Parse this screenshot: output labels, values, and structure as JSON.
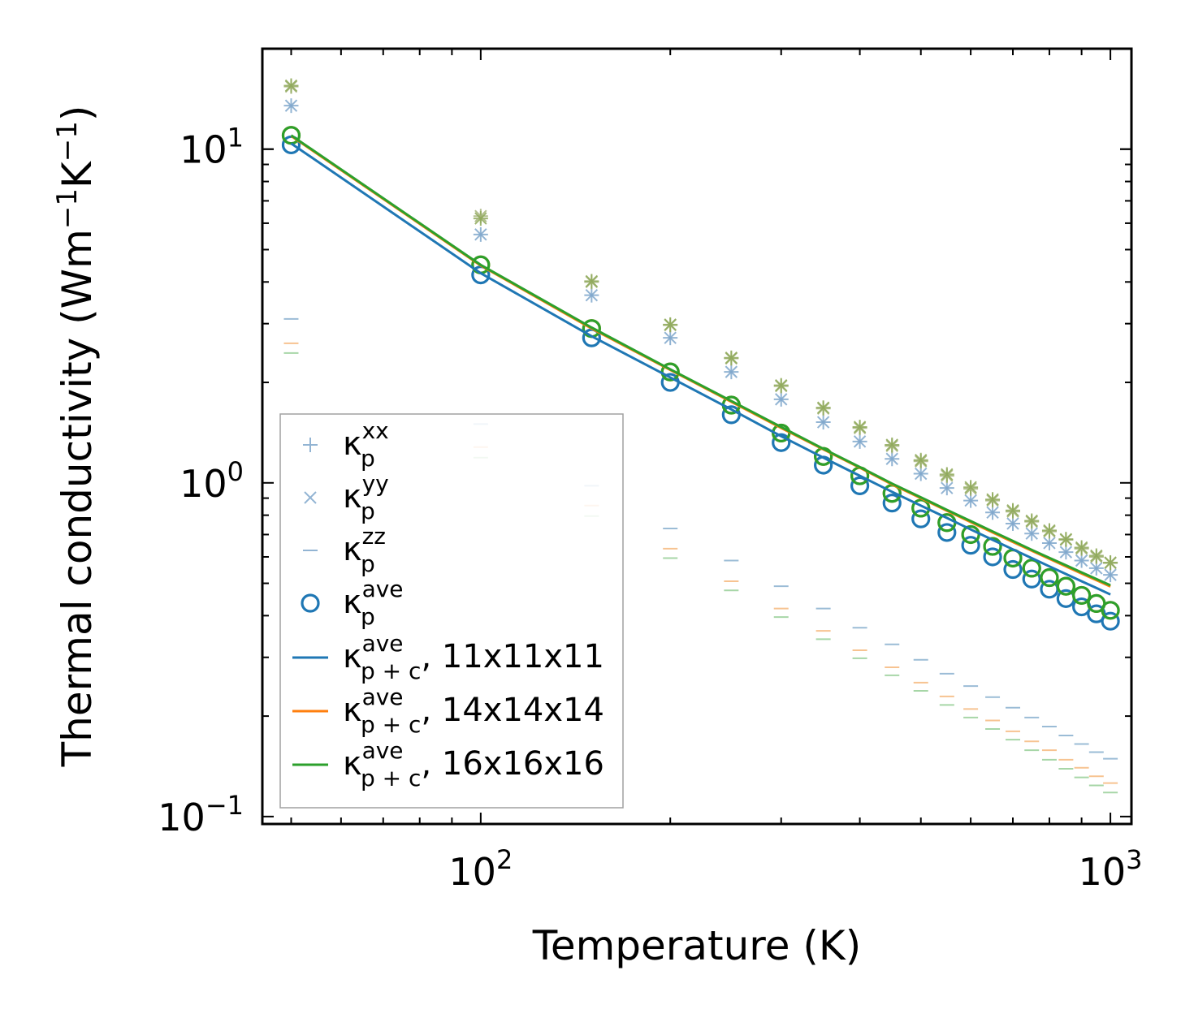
{
  "chart_data": {
    "type": "scatter",
    "xscale": "log",
    "yscale": "log",
    "xlim": [
      45,
      1080
    ],
    "ylim": [
      0.095,
      20
    ],
    "xlabel": "Temperature (K)",
    "ylabel": {
      "main": "Thermal conductivity (Wm",
      "exp1": "−1",
      "mid": "K",
      "exp2": "−1",
      "end": ")"
    },
    "x_ticks": [
      {
        "base": "10",
        "exp": "2",
        "value": 100
      },
      {
        "base": "10",
        "exp": "3",
        "value": 1000
      }
    ],
    "y_ticks": [
      {
        "base": "10",
        "exp": "−1",
        "value": 0.1
      },
      {
        "base": "10",
        "exp": "0",
        "value": 1
      },
      {
        "base": "10",
        "exp": "1",
        "value": 10
      }
    ],
    "x": [
      50,
      100,
      150,
      200,
      250,
      300,
      350,
      400,
      450,
      500,
      550,
      600,
      650,
      700,
      750,
      800,
      850,
      900,
      950,
      1000
    ],
    "series": [
      {
        "name": "kappa_p_xx",
        "marker": "plus",
        "color": "#7fa7cc",
        "groups": [
          {
            "color": "#7fa7cc",
            "values": [
              13.5,
              5.55,
              3.65,
              2.72,
              2.15,
              1.78,
              1.52,
              1.33,
              1.18,
              1.065,
              0.965,
              0.885,
              0.815,
              0.755,
              0.705,
              0.66,
              0.62,
              0.585,
              0.555,
              0.53
            ]
          },
          {
            "color": "#a6b47c",
            "values": [
              15.4,
              6.3,
              4.0,
              2.97,
              2.36,
              1.95,
              1.67,
              1.46,
              1.29,
              1.16,
              1.05,
              0.96,
              0.885,
              0.82,
              0.765,
              0.715,
              0.675,
              0.635,
              0.6,
              0.575
            ]
          },
          {
            "color": "#8faa5a",
            "values": [
              15.5,
              6.2,
              4.02,
              2.98,
              2.37,
              1.96,
              1.68,
              1.47,
              1.3,
              1.17,
              1.06,
              0.97,
              0.892,
              0.827,
              0.77,
              0.72,
              0.678,
              0.64,
              0.605,
              0.577
            ]
          }
        ]
      },
      {
        "name": "kappa_p_yy",
        "marker": "x",
        "color": "#7fa7cc",
        "groups": [
          {
            "color": "#7fa7cc",
            "values": [
              13.5,
              5.55,
              3.65,
              2.72,
              2.15,
              1.78,
              1.52,
              1.33,
              1.18,
              1.065,
              0.965,
              0.885,
              0.815,
              0.755,
              0.705,
              0.66,
              0.62,
              0.585,
              0.555,
              0.53
            ]
          },
          {
            "color": "#a6b47c",
            "values": [
              15.4,
              6.3,
              4.0,
              2.97,
              2.36,
              1.95,
              1.67,
              1.46,
              1.29,
              1.16,
              1.05,
              0.96,
              0.885,
              0.82,
              0.765,
              0.715,
              0.675,
              0.635,
              0.6,
              0.575
            ]
          },
          {
            "color": "#8faa5a",
            "values": [
              15.5,
              6.2,
              4.02,
              2.98,
              2.37,
              1.96,
              1.68,
              1.47,
              1.3,
              1.17,
              1.06,
              0.97,
              0.892,
              0.827,
              0.77,
              0.72,
              0.678,
              0.64,
              0.605,
              0.577
            ]
          }
        ]
      },
      {
        "name": "kappa_p_zz",
        "marker": "hline",
        "color": "#7fa7cc",
        "groups": [
          {
            "color": "#8ab1d0",
            "values": [
              3.1,
              1.5,
              0.98,
              0.73,
              0.585,
              0.49,
              0.42,
              0.368,
              0.328,
              0.295,
              0.268,
              0.246,
              0.228,
              0.212,
              0.198,
              0.186,
              0.175,
              0.165,
              0.156,
              0.149
            ]
          },
          {
            "color": "#f6b97e",
            "values": [
              2.62,
              1.28,
              0.855,
              0.635,
              0.507,
              0.42,
              0.36,
              0.315,
              0.28,
              0.252,
              0.229,
              0.21,
              0.194,
              0.18,
              0.168,
              0.158,
              0.148,
              0.14,
              0.132,
              0.126
            ]
          },
          {
            "color": "#98cf98",
            "values": [
              2.45,
              1.19,
              0.795,
              0.595,
              0.476,
              0.396,
              0.34,
              0.298,
              0.265,
              0.238,
              0.216,
              0.198,
              0.183,
              0.17,
              0.158,
              0.148,
              0.139,
              0.131,
              0.124,
              0.118
            ]
          }
        ]
      },
      {
        "name": "kappa_p_ave",
        "marker": "circle",
        "groups": [
          {
            "color": "#1f77b4",
            "values": [
              10.3,
              4.2,
              2.72,
              2.0,
              1.6,
              1.32,
              1.13,
              0.98,
              0.87,
              0.78,
              0.71,
              0.65,
              0.6,
              0.55,
              0.515,
              0.48,
              0.45,
              0.425,
              0.405,
              0.385
            ]
          },
          {
            "color": "#ff7f0e",
            "values": [
              11.0,
              4.5,
              2.9,
              2.15,
              1.71,
              1.41,
              1.2,
              1.05,
              0.93,
              0.84,
              0.76,
              0.7,
              0.645,
              0.595,
              0.555,
              0.52,
              0.49,
              0.46,
              0.435,
              0.415
            ]
          },
          {
            "color": "#2ca02c",
            "values": [
              11.0,
              4.5,
              2.9,
              2.15,
              1.71,
              1.41,
              1.2,
              1.05,
              0.93,
              0.84,
              0.76,
              0.7,
              0.645,
              0.595,
              0.555,
              0.52,
              0.49,
              0.46,
              0.435,
              0.415
            ]
          }
        ]
      },
      {
        "name": "kappa_pc_ave_11",
        "type": "line",
        "color": "#1f77b4",
        "values": [
          10.4,
          4.25,
          2.75,
          2.07,
          1.66,
          1.38,
          1.19,
          1.05,
          0.94,
          0.855,
          0.785,
          0.725,
          0.675,
          0.632,
          0.595,
          0.562,
          0.533,
          0.507,
          0.484,
          0.463
        ]
      },
      {
        "name": "kappa_pc_ave_14",
        "type": "line",
        "color": "#ff7f0e",
        "values": [
          10.95,
          4.48,
          2.9,
          2.18,
          1.75,
          1.46,
          1.26,
          1.11,
          0.99,
          0.9,
          0.825,
          0.763,
          0.71,
          0.665,
          0.626,
          0.592,
          0.562,
          0.535,
          0.511,
          0.489
        ]
      },
      {
        "name": "kappa_pc_ave_16",
        "type": "line",
        "color": "#2ca02c",
        "values": [
          11.0,
          4.5,
          2.92,
          2.19,
          1.76,
          1.47,
          1.265,
          1.115,
          0.995,
          0.905,
          0.83,
          0.768,
          0.715,
          0.67,
          0.63,
          0.596,
          0.566,
          0.539,
          0.515,
          0.493
        ]
      }
    ],
    "legend": {
      "position": "lower-left",
      "entries": [
        {
          "marker": "plus",
          "color": "#7fa7cc",
          "kappa": "κ",
          "sub": "p",
          "sup": "xx",
          "suffix": ""
        },
        {
          "marker": "x",
          "color": "#7fa7cc",
          "kappa": "κ",
          "sub": "p",
          "sup": "yy",
          "suffix": ""
        },
        {
          "marker": "hline",
          "color": "#7fa7cc",
          "kappa": "κ",
          "sub": "p",
          "sup": "zz",
          "suffix": ""
        },
        {
          "marker": "circle",
          "color": "#1f77b4",
          "kappa": "κ",
          "sub": "p",
          "sup": "ave",
          "suffix": ""
        },
        {
          "marker": "line",
          "color": "#1f77b4",
          "kappa": "κ",
          "sub": "p + c",
          "sup": "ave",
          "suffix": ", 11x11x11"
        },
        {
          "marker": "line",
          "color": "#ff7f0e",
          "kappa": "κ",
          "sub": "p + c",
          "sup": "ave",
          "suffix": ", 14x14x14"
        },
        {
          "marker": "line",
          "color": "#2ca02c",
          "kappa": "κ",
          "sub": "p + c",
          "sup": "ave",
          "suffix": ", 16x16x16"
        }
      ]
    }
  }
}
